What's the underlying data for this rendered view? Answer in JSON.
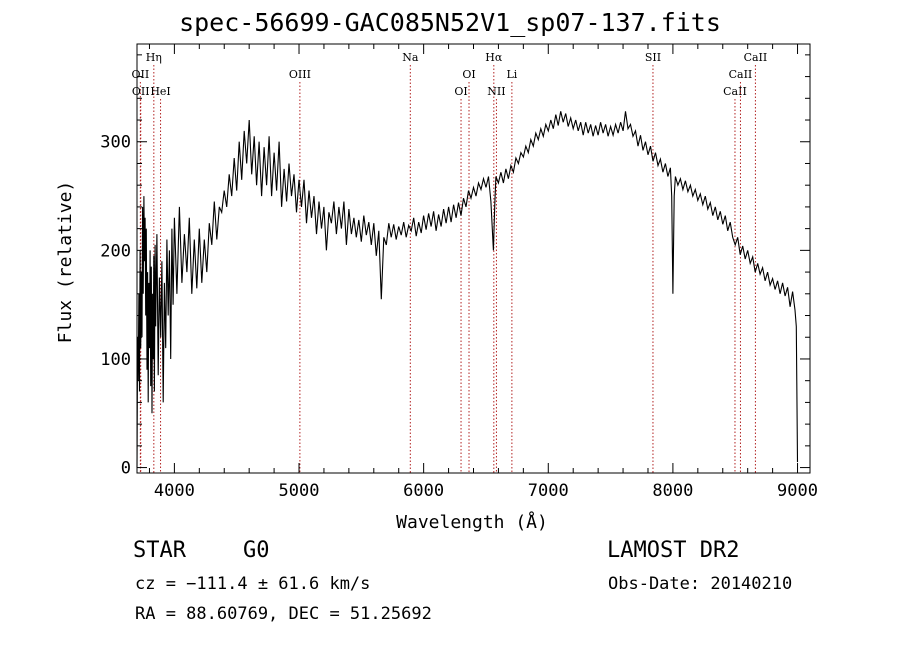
{
  "header": {
    "title": "spec-56699-GAC085N52V1_sp07-137.fits"
  },
  "info": {
    "class": "STAR",
    "subclass": "G0",
    "survey": "LAMOST DR2",
    "cz": "cz = −111.4 ± 61.6 km/s",
    "obs_date": "Obs-Date: 20140210",
    "radec": "RA =  88.60769, DEC =  51.25692"
  },
  "chart_data": {
    "type": "line",
    "title": "spec-56699-GAC085N52V1_sp07-137.fits",
    "xlabel": "Wavelength (Å)",
    "ylabel": "Flux (relative)",
    "xlim": [
      3700,
      9100
    ],
    "ylim": [
      -5,
      390
    ],
    "xticks": [
      4000,
      5000,
      6000,
      7000,
      8000,
      9000
    ],
    "yticks": [
      0,
      100,
      200,
      300
    ],
    "line_color": "#000000",
    "marker_color": "#b22222",
    "spectrum": {
      "name": "",
      "points": [
        [
          3700,
          0
        ],
        [
          3705,
          120
        ],
        [
          3710,
          80
        ],
        [
          3715,
          160
        ],
        [
          3720,
          70
        ],
        [
          3725,
          200
        ],
        [
          3730,
          110
        ],
        [
          3735,
          180
        ],
        [
          3740,
          120
        ],
        [
          3745,
          240
        ],
        [
          3750,
          160
        ],
        [
          3755,
          250
        ],
        [
          3760,
          190
        ],
        [
          3765,
          230
        ],
        [
          3770,
          140
        ],
        [
          3775,
          220
        ],
        [
          3780,
          90
        ],
        [
          3785,
          180
        ],
        [
          3790,
          60
        ],
        [
          3795,
          170
        ],
        [
          3800,
          110
        ],
        [
          3805,
          200
        ],
        [
          3810,
          75
        ],
        [
          3815,
          185
        ],
        [
          3820,
          50
        ],
        [
          3825,
          160
        ],
        [
          3830,
          100
        ],
        [
          3835,
          195
        ],
        [
          3840,
          70
        ],
        [
          3845,
          205
        ],
        [
          3850,
          130
        ],
        [
          3860,
          215
        ],
        [
          3870,
          85
        ],
        [
          3880,
          175
        ],
        [
          3890,
          120
        ],
        [
          3900,
          190
        ],
        [
          3910,
          60
        ],
        [
          3920,
          170
        ],
        [
          3930,
          110
        ],
        [
          3940,
          210
        ],
        [
          3950,
          140
        ],
        [
          3960,
          200
        ],
        [
          3970,
          100
        ],
        [
          3980,
          220
        ],
        [
          3990,
          150
        ],
        [
          4000,
          230
        ],
        [
          4020,
          160
        ],
        [
          4040,
          240
        ],
        [
          4060,
          170
        ],
        [
          4080,
          215
        ],
        [
          4100,
          180
        ],
        [
          4120,
          230
        ],
        [
          4140,
          160
        ],
        [
          4160,
          210
        ],
        [
          4180,
          165
        ],
        [
          4200,
          220
        ],
        [
          4220,
          170
        ],
        [
          4240,
          210
        ],
        [
          4260,
          180
        ],
        [
          4280,
          225
        ],
        [
          4300,
          205
        ],
        [
          4320,
          245
        ],
        [
          4340,
          210
        ],
        [
          4360,
          240
        ],
        [
          4380,
          235
        ],
        [
          4400,
          255
        ],
        [
          4420,
          240
        ],
        [
          4440,
          270
        ],
        [
          4460,
          250
        ],
        [
          4480,
          285
        ],
        [
          4500,
          255
        ],
        [
          4520,
          300
        ],
        [
          4540,
          265
        ],
        [
          4560,
          310
        ],
        [
          4580,
          280
        ],
        [
          4600,
          320
        ],
        [
          4620,
          270
        ],
        [
          4640,
          305
        ],
        [
          4660,
          260
        ],
        [
          4680,
          300
        ],
        [
          4700,
          250
        ],
        [
          4720,
          295
        ],
        [
          4740,
          260
        ],
        [
          4760,
          305
        ],
        [
          4780,
          250
        ],
        [
          4800,
          290
        ],
        [
          4820,
          255
        ],
        [
          4840,
          300
        ],
        [
          4860,
          240
        ],
        [
          4880,
          275
        ],
        [
          4900,
          245
        ],
        [
          4920,
          280
        ],
        [
          4940,
          250
        ],
        [
          4960,
          270
        ],
        [
          4980,
          235
        ],
        [
          5000,
          265
        ],
        [
          5020,
          240
        ],
        [
          5040,
          265
        ],
        [
          5060,
          225
        ],
        [
          5080,
          255
        ],
        [
          5100,
          230
        ],
        [
          5120,
          250
        ],
        [
          5140,
          215
        ],
        [
          5160,
          245
        ],
        [
          5180,
          220
        ],
        [
          5200,
          240
        ],
        [
          5220,
          200
        ],
        [
          5240,
          235
        ],
        [
          5260,
          225
        ],
        [
          5280,
          245
        ],
        [
          5300,
          215
        ],
        [
          5320,
          240
        ],
        [
          5340,
          220
        ],
        [
          5360,
          245
        ],
        [
          5380,
          205
        ],
        [
          5400,
          238
        ],
        [
          5420,
          215
        ],
        [
          5440,
          230
        ],
        [
          5460,
          212
        ],
        [
          5480,
          228
        ],
        [
          5500,
          208
        ],
        [
          5520,
          232
        ],
        [
          5540,
          214
        ],
        [
          5560,
          226
        ],
        [
          5580,
          205
        ],
        [
          5600,
          225
        ],
        [
          5620,
          195
        ],
        [
          5640,
          218
        ],
        [
          5660,
          155
        ],
        [
          5680,
          212
        ],
        [
          5700,
          205
        ],
        [
          5720,
          225
        ],
        [
          5740,
          212
        ],
        [
          5760,
          224
        ],
        [
          5780,
          210
        ],
        [
          5800,
          222
        ],
        [
          5820,
          214
        ],
        [
          5840,
          226
        ],
        [
          5860,
          212
        ],
        [
          5880,
          223
        ],
        [
          5900,
          218
        ],
        [
          5920,
          230
        ],
        [
          5940,
          213
        ],
        [
          5960,
          226
        ],
        [
          5980,
          216
        ],
        [
          6000,
          232
        ],
        [
          6020,
          219
        ],
        [
          6040,
          234
        ],
        [
          6060,
          222
        ],
        [
          6080,
          236
        ],
        [
          6100,
          218
        ],
        [
          6120,
          233
        ],
        [
          6140,
          222
        ],
        [
          6160,
          238
        ],
        [
          6180,
          225
        ],
        [
          6200,
          240
        ],
        [
          6220,
          226
        ],
        [
          6240,
          242
        ],
        [
          6260,
          230
        ],
        [
          6280,
          244
        ],
        [
          6300,
          232
        ],
        [
          6320,
          248
        ],
        [
          6340,
          240
        ],
        [
          6360,
          255
        ],
        [
          6380,
          248
        ],
        [
          6400,
          258
        ],
        [
          6420,
          250
        ],
        [
          6440,
          262
        ],
        [
          6460,
          256
        ],
        [
          6480,
          266
        ],
        [
          6500,
          258
        ],
        [
          6520,
          268
        ],
        [
          6540,
          245
        ],
        [
          6560,
          200
        ],
        [
          6570,
          240
        ],
        [
          6580,
          268
        ],
        [
          6600,
          262
        ],
        [
          6620,
          272
        ],
        [
          6640,
          262
        ],
        [
          6660,
          275
        ],
        [
          6680,
          266
        ],
        [
          6700,
          278
        ],
        [
          6720,
          272
        ],
        [
          6740,
          285
        ],
        [
          6760,
          280
        ],
        [
          6780,
          290
        ],
        [
          6800,
          286
        ],
        [
          6820,
          296
        ],
        [
          6840,
          290
        ],
        [
          6860,
          302
        ],
        [
          6880,
          296
        ],
        [
          6900,
          308
        ],
        [
          6920,
          302
        ],
        [
          6940,
          312
        ],
        [
          6960,
          305
        ],
        [
          6980,
          316
        ],
        [
          7000,
          310
        ],
        [
          7020,
          320
        ],
        [
          7040,
          312
        ],
        [
          7060,
          325
        ],
        [
          7080,
          315
        ],
        [
          7100,
          328
        ],
        [
          7120,
          318
        ],
        [
          7140,
          326
        ],
        [
          7160,
          314
        ],
        [
          7180,
          322
        ],
        [
          7200,
          312
        ],
        [
          7220,
          320
        ],
        [
          7240,
          310
        ],
        [
          7260,
          318
        ],
        [
          7280,
          306
        ],
        [
          7300,
          318
        ],
        [
          7320,
          308
        ],
        [
          7340,
          316
        ],
        [
          7360,
          305
        ],
        [
          7380,
          315
        ],
        [
          7400,
          306
        ],
        [
          7420,
          318
        ],
        [
          7440,
          308
        ],
        [
          7460,
          316
        ],
        [
          7480,
          305
        ],
        [
          7500,
          314
        ],
        [
          7520,
          306
        ],
        [
          7540,
          316
        ],
        [
          7560,
          308
        ],
        [
          7580,
          318
        ],
        [
          7600,
          310
        ],
        [
          7620,
          328
        ],
        [
          7640,
          312
        ],
        [
          7660,
          316
        ],
        [
          7680,
          305
        ],
        [
          7700,
          310
        ],
        [
          7720,
          296
        ],
        [
          7740,
          306
        ],
        [
          7760,
          292
        ],
        [
          7780,
          300
        ],
        [
          7800,
          288
        ],
        [
          7820,
          296
        ],
        [
          7840,
          282
        ],
        [
          7860,
          290
        ],
        [
          7880,
          278
        ],
        [
          7900,
          284
        ],
        [
          7920,
          272
        ],
        [
          7940,
          280
        ],
        [
          7960,
          268
        ],
        [
          7980,
          276
        ],
        [
          7990,
          250
        ],
        [
          8000,
          160
        ],
        [
          8010,
          250
        ],
        [
          8020,
          268
        ],
        [
          8040,
          260
        ],
        [
          8060,
          266
        ],
        [
          8080,
          256
        ],
        [
          8100,
          264
        ],
        [
          8120,
          254
        ],
        [
          8140,
          260
        ],
        [
          8160,
          250
        ],
        [
          8180,
          256
        ],
        [
          8200,
          246
        ],
        [
          8220,
          252
        ],
        [
          8240,
          242
        ],
        [
          8260,
          250
        ],
        [
          8280,
          238
        ],
        [
          8300,
          244
        ],
        [
          8320,
          232
        ],
        [
          8340,
          240
        ],
        [
          8360,
          228
        ],
        [
          8380,
          236
        ],
        [
          8400,
          224
        ],
        [
          8420,
          232
        ],
        [
          8440,
          218
        ],
        [
          8460,
          226
        ],
        [
          8480,
          212
        ],
        [
          8500,
          205
        ],
        [
          8520,
          212
        ],
        [
          8540,
          196
        ],
        [
          8560,
          204
        ],
        [
          8580,
          192
        ],
        [
          8600,
          200
        ],
        [
          8620,
          188
        ],
        [
          8640,
          194
        ],
        [
          8660,
          180
        ],
        [
          8680,
          188
        ],
        [
          8700,
          178
        ],
        [
          8720,
          184
        ],
        [
          8740,
          172
        ],
        [
          8760,
          180
        ],
        [
          8780,
          168
        ],
        [
          8800,
          174
        ],
        [
          8820,
          164
        ],
        [
          8840,
          172
        ],
        [
          8860,
          160
        ],
        [
          8880,
          170
        ],
        [
          8900,
          158
        ],
        [
          8920,
          166
        ],
        [
          8940,
          148
        ],
        [
          8960,
          162
        ],
        [
          8980,
          145
        ],
        [
          8990,
          130
        ],
        [
          9000,
          5
        ]
      ]
    },
    "line_markers": [
      {
        "label": "OII",
        "x": 3727,
        "row": 1
      },
      {
        "label": "OII",
        "x": 3730,
        "row": 2
      },
      {
        "label": "Hη",
        "x": 3835,
        "row": 0
      },
      {
        "label": "HeI",
        "x": 3889,
        "row": 2
      },
      {
        "label": "OIII",
        "x": 5007,
        "row": 1
      },
      {
        "label": "Na",
        "x": 5893,
        "row": 0
      },
      {
        "label": "OI",
        "x": 6300,
        "row": 2
      },
      {
        "label": "OI",
        "x": 6364,
        "row": 1
      },
      {
        "label": "Hα",
        "x": 6563,
        "row": 0
      },
      {
        "label": "NII",
        "x": 6584,
        "row": 2
      },
      {
        "label": "Li",
        "x": 6708,
        "row": 1
      },
      {
        "label": "SII",
        "x": 7840,
        "row": 0
      },
      {
        "label": "CaII",
        "x": 8498,
        "row": 2
      },
      {
        "label": "CaII",
        "x": 8542,
        "row": 1
      },
      {
        "label": "CaII",
        "x": 8662,
        "row": 0
      }
    ]
  }
}
